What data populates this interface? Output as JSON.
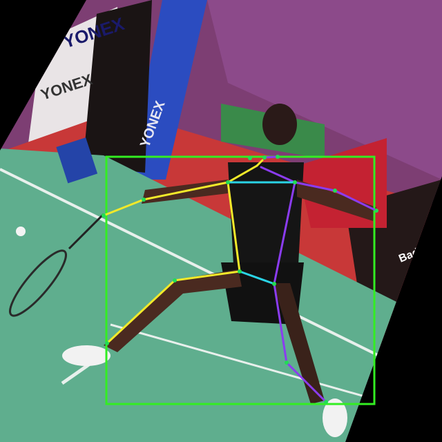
{
  "image": {
    "description_tags": [
      "badminton-player",
      "lunge",
      "pose-keypoints",
      "bounding-box"
    ],
    "colors": {
      "background": "#000000",
      "court": "#5fae8e",
      "court_line": "#e8f0ec",
      "wall_red": "#d23a3a",
      "wall_purple": "#8a3d7a",
      "bbox": "#33ee22",
      "skeleton_left": "#f2e92a",
      "skeleton_right": "#8b3cf0",
      "skeleton_center": "#2ad4e6",
      "keypoint": "#22dd55"
    }
  },
  "signage": {
    "yonex_top": "YONEX",
    "yonex_side": "YONEX",
    "wall_banner": "YONEX",
    "right_banner": "Badminton"
  }
}
